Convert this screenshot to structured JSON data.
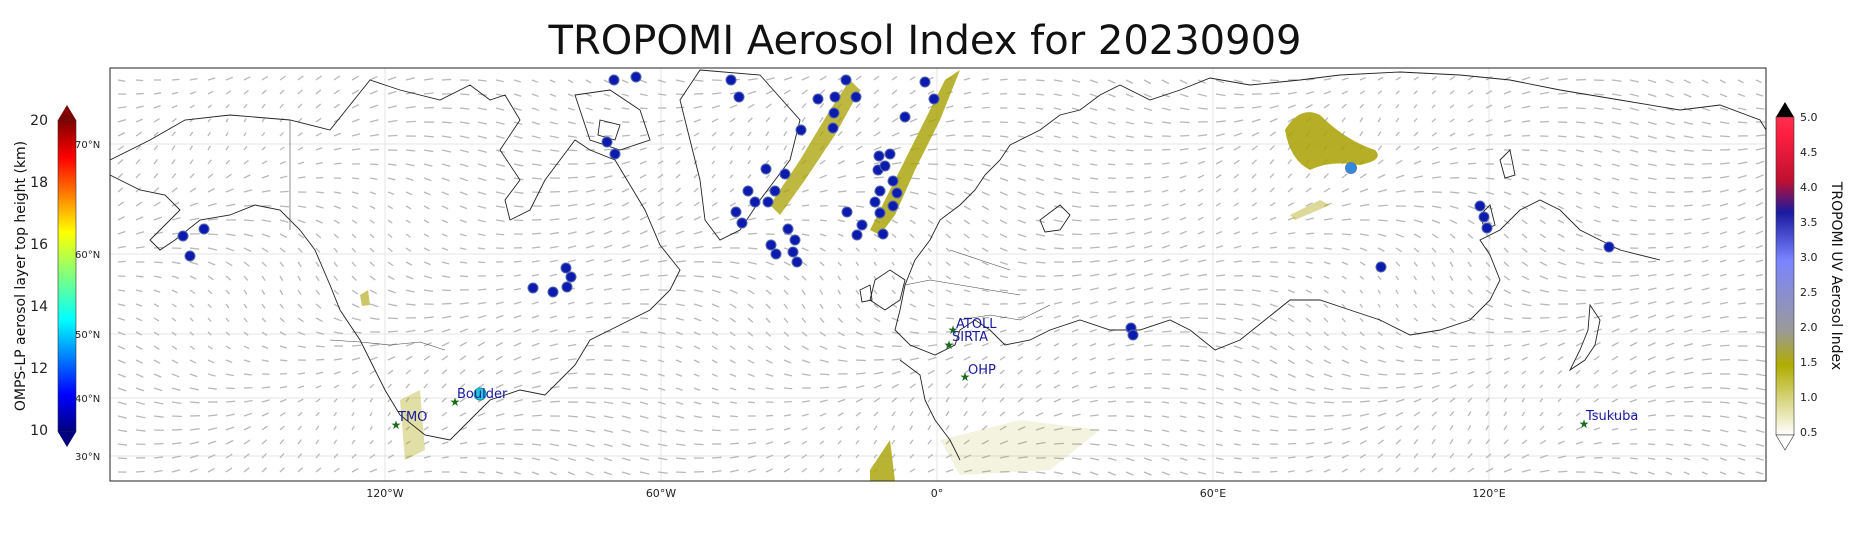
{
  "title": "TROPOMI Aerosol Index for 20230909",
  "lon_ticks": [
    "120°W",
    "60°W",
    "0°",
    "60°E",
    "120°E"
  ],
  "lat_ticks": [
    "70°N",
    "60°N",
    "50°N",
    "40°N",
    "30°N"
  ],
  "left_colorbar": {
    "label": "OMPS-LP aerosol layer top height (km)",
    "ticks": [
      "20",
      "18",
      "16",
      "14",
      "12",
      "10"
    ],
    "colormap": "jet"
  },
  "right_colorbar": {
    "label": "TROPOMI UV Aerosol Index",
    "ticks": [
      "5.0",
      "4.5",
      "4.0",
      "3.5",
      "3.0",
      "2.5",
      "2.0",
      "1.5",
      "1.0",
      "0.5"
    ],
    "colors": [
      "#ffffff",
      "#b0ac00",
      "#9a9a9a",
      "#7a84ff",
      "#1a1aa0",
      "#c01030",
      "#ff2040",
      "#000000"
    ]
  },
  "sites": [
    {
      "name": "TMO"
    },
    {
      "name": "Boulder"
    },
    {
      "name": "ATOLL"
    },
    {
      "name": "SIRTA"
    },
    {
      "name": "OHP"
    },
    {
      "name": "Tsukuba"
    }
  ],
  "legend_colors": {
    "site_marker": "#1a6b1a",
    "high_point": "#0b1bb0",
    "aerosol_plume": "#a8a000"
  }
}
